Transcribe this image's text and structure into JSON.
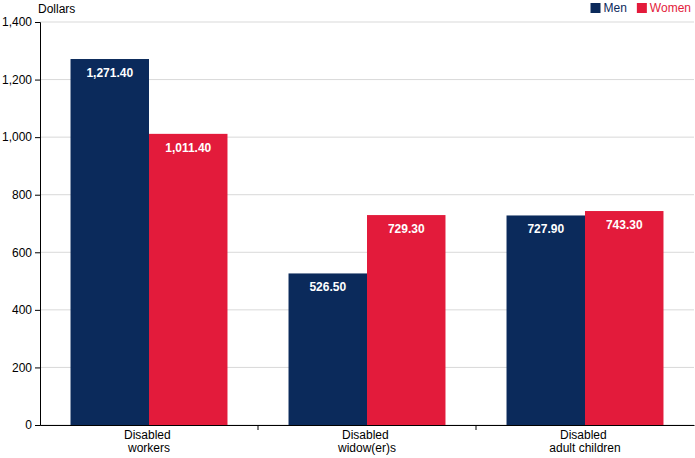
{
  "chart_data": {
    "type": "bar",
    "y_label": "Dollars",
    "categories": [
      "Disabled workers",
      "Disabled widow(er)s",
      "Disabled adult children"
    ],
    "series": [
      {
        "name": "Men",
        "color": "#0b2a5b",
        "values": [
          1271.4,
          526.5,
          727.9
        ],
        "value_labels": [
          "1,271.40",
          "526.50",
          "727.90"
        ]
      },
      {
        "name": "Women",
        "color": "#e31b3b",
        "values": [
          1011.4,
          729.3,
          743.3
        ],
        "value_labels": [
          "1,011.40",
          "729.30",
          "743.30"
        ]
      }
    ],
    "ylim": [
      0,
      1400
    ],
    "yticks": [
      0,
      200,
      400,
      600,
      800,
      {
        "value": 1000,
        "label": "1,000"
      },
      {
        "value": 1200,
        "label": "1,200"
      },
      {
        "value": 1400,
        "label": "1,400"
      }
    ],
    "grid": true,
    "legend": "top-right",
    "data_labels": true
  }
}
